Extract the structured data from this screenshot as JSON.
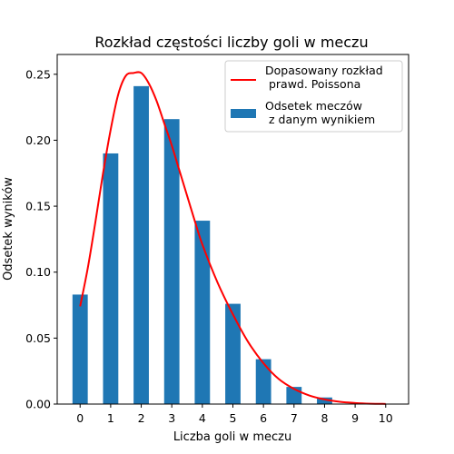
{
  "chart_data": {
    "type": "bar",
    "title": "Rozkład częstości liczby goli w meczu",
    "xlabel": "Liczba goli w meczu",
    "ylabel": "Odsetek wyników",
    "xlim": [
      -0.75,
      10.75
    ],
    "ylim": [
      0,
      0.265
    ],
    "x_ticks": [
      0,
      1,
      2,
      3,
      4,
      5,
      6,
      7,
      8,
      9,
      10
    ],
    "y_ticks": [
      "0.00",
      "0.05",
      "0.10",
      "0.15",
      "0.20",
      "0.25"
    ],
    "grid": false,
    "legend_position": "top-right",
    "series": [
      {
        "name": "Odsetek meczów\n z danym wynikiem",
        "type": "bar",
        "color": "#1f77b4",
        "x": [
          0,
          1,
          2,
          3,
          4,
          5,
          6,
          7,
          8,
          9,
          10
        ],
        "values": [
          0.083,
          0.19,
          0.241,
          0.216,
          0.139,
          0.076,
          0.034,
          0.013,
          0.005,
          0.0,
          0.0
        ]
      },
      {
        "name": "Dopasowany rozkład\n prawd. Poissona",
        "type": "line",
        "color": "#ff0000",
        "x": [
          0,
          0.25,
          0.5,
          0.75,
          1,
          1.25,
          1.5,
          1.75,
          2,
          2.25,
          2.5,
          2.75,
          3,
          3.25,
          3.5,
          3.75,
          4,
          4.5,
          5,
          5.5,
          6,
          6.5,
          7,
          7.5,
          8,
          8.5,
          9,
          9.5,
          10
        ],
        "values": [
          0.074,
          0.103,
          0.138,
          0.175,
          0.208,
          0.235,
          0.249,
          0.251,
          0.251,
          0.243,
          0.23,
          0.213,
          0.196,
          0.177,
          0.158,
          0.139,
          0.121,
          0.092,
          0.068,
          0.047,
          0.031,
          0.019,
          0.0115,
          0.0065,
          0.0035,
          0.0017,
          0.0008,
          0.0003,
          0.0001
        ]
      }
    ]
  }
}
